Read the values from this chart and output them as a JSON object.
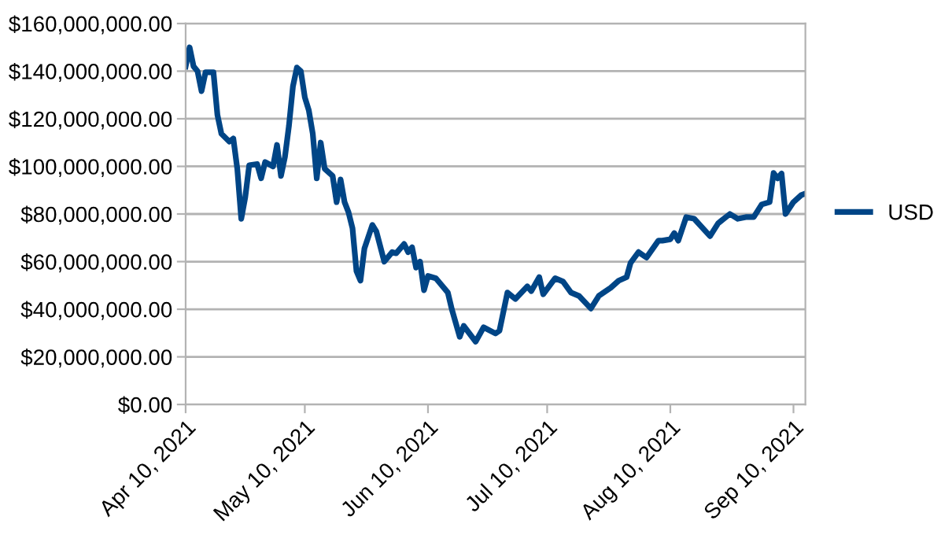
{
  "chart_data": {
    "type": "line",
    "legend": "right",
    "grid": "y",
    "marker": "none",
    "line_style": "solid",
    "x": [
      "2021-04-10",
      "2021-04-11",
      "2021-04-12",
      "2021-04-13",
      "2021-04-14",
      "2021-04-15",
      "2021-04-17",
      "2021-04-18",
      "2021-04-19",
      "2021-04-21",
      "2021-04-22",
      "2021-04-23",
      "2021-04-24",
      "2021-04-25",
      "2021-04-26",
      "2021-04-28",
      "2021-04-29",
      "2021-04-30",
      "2021-05-02",
      "2021-05-03",
      "2021-05-04",
      "2021-05-05",
      "2021-05-06",
      "2021-05-07",
      "2021-05-08",
      "2021-05-09",
      "2021-05-10",
      "2021-05-11",
      "2021-05-12",
      "2021-05-13",
      "2021-05-14",
      "2021-05-15",
      "2021-05-17",
      "2021-05-18",
      "2021-05-19",
      "2021-05-20",
      "2021-05-21",
      "2021-05-22",
      "2021-05-23",
      "2021-05-24",
      "2021-05-25",
      "2021-05-27",
      "2021-05-28",
      "2021-05-30",
      "2021-06-01",
      "2021-06-02",
      "2021-06-04",
      "2021-06-05",
      "2021-06-06",
      "2021-06-07",
      "2021-06-08",
      "2021-06-09",
      "2021-06-10",
      "2021-06-12",
      "2021-06-15",
      "2021-06-16",
      "2021-06-18",
      "2021-06-19",
      "2021-06-22",
      "2021-06-24",
      "2021-06-27",
      "2021-06-28",
      "2021-06-30",
      "2021-07-02",
      "2021-07-05",
      "2021-07-06",
      "2021-07-08",
      "2021-07-09",
      "2021-07-12",
      "2021-07-14",
      "2021-07-16",
      "2021-07-18",
      "2021-07-21",
      "2021-07-23",
      "2021-07-26",
      "2021-07-28",
      "2021-07-30",
      "2021-07-31",
      "2021-08-02",
      "2021-08-04",
      "2021-08-07",
      "2021-08-08",
      "2021-08-10",
      "2021-08-11",
      "2021-08-12",
      "2021-08-14",
      "2021-08-16",
      "2021-08-20",
      "2021-08-22",
      "2021-08-23",
      "2021-08-25",
      "2021-08-27",
      "2021-08-29",
      "2021-08-31",
      "2021-09-02",
      "2021-09-04",
      "2021-09-05",
      "2021-09-06",
      "2021-09-07",
      "2021-09-08",
      "2021-09-10",
      "2021-09-12",
      "2021-09-13"
    ],
    "series": [
      {
        "name": "USD",
        "color": "#004586",
        "values": [
          142000000,
          150000000,
          142000000,
          140000000,
          131600000,
          139500000,
          139500000,
          121600000,
          113700000,
          110400000,
          111700000,
          99000000,
          78000000,
          87000000,
          100500000,
          101000000,
          95000000,
          101800000,
          100000000,
          109000000,
          96000000,
          104000000,
          117000000,
          133500000,
          141500000,
          140000000,
          129000000,
          123600000,
          113700000,
          95000000,
          110000000,
          99000000,
          96000000,
          85000000,
          94500000,
          85000000,
          80700000,
          74000000,
          56000000,
          52000000,
          65500000,
          75400000,
          72700000,
          60000000,
          64000000,
          63500000,
          67400000,
          64000000,
          66000000,
          57500000,
          60000000,
          48000000,
          54000000,
          53000000,
          47000000,
          40000000,
          28400000,
          33000000,
          26400000,
          32400000,
          29800000,
          31000000,
          47000000,
          44300000,
          49600000,
          47600000,
          53500000,
          46300000,
          53000000,
          51600000,
          47000000,
          45600000,
          40300000,
          45600000,
          49000000,
          52000000,
          53500000,
          59500000,
          64000000,
          61700000,
          68800000,
          68800000,
          69400000,
          72000000,
          68800000,
          78700000,
          78000000,
          70700000,
          76000000,
          77400000,
          80000000,
          78000000,
          78700000,
          78700000,
          84000000,
          85000000,
          97200000,
          95000000,
          97000000,
          80000000,
          85000000,
          88000000,
          88600000
        ]
      }
    ],
    "xlim": [
      "2021-04-10",
      "2021-09-13"
    ],
    "xticks": [
      {
        "value": "2021-04-10",
        "label": "Apr 10, 2021"
      },
      {
        "value": "2021-05-10",
        "label": "May 10, 2021"
      },
      {
        "value": "2021-06-10",
        "label": "Jun 10, 2021"
      },
      {
        "value": "2021-07-10",
        "label": "Jul 10, 2021"
      },
      {
        "value": "2021-08-10",
        "label": "Aug 10, 2021"
      },
      {
        "value": "2021-09-10",
        "label": "Sep 10, 2021"
      }
    ],
    "ylim": [
      0,
      160000000
    ],
    "yticks": [
      {
        "value": 0,
        "label": "$0.00"
      },
      {
        "value": 20000000,
        "label": "$20,000,000.00"
      },
      {
        "value": 40000000,
        "label": "$40,000,000.00"
      },
      {
        "value": 60000000,
        "label": "$60,000,000.00"
      },
      {
        "value": 80000000,
        "label": "$80,000,000.00"
      },
      {
        "value": 100000000,
        "label": "$100,000,000.00"
      },
      {
        "value": 120000000,
        "label": "$120,000,000.00"
      },
      {
        "value": 140000000,
        "label": "$140,000,000.00"
      },
      {
        "value": 160000000,
        "label": "$160,000,000.00"
      }
    ]
  }
}
